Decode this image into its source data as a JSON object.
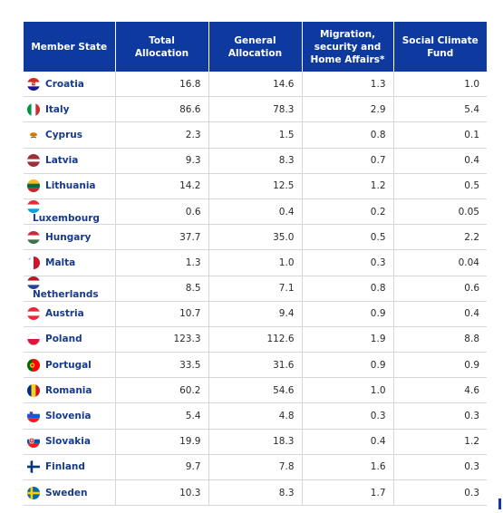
{
  "headers": [
    "Member State",
    "Total Allocation",
    "General Allocation",
    "Migration, security and Home Affairs*",
    "Social Climate Fund"
  ],
  "rows": [
    {
      "country": "Croatia",
      "flag": "croatia-flag-icon",
      "values": [
        "16.8",
        "14.6",
        "1.3",
        "1.0"
      ]
    },
    {
      "country": "Italy",
      "flag": "italy-flag-icon",
      "values": [
        "86.6",
        "78.3",
        "2.9",
        "5.4"
      ]
    },
    {
      "country": "Cyprus",
      "flag": "cyprus-flag-icon",
      "values": [
        "2.3",
        "1.5",
        "0.8",
        "0.1"
      ]
    },
    {
      "country": "Latvia",
      "flag": "latvia-flag-icon",
      "values": [
        "9.3",
        "8.3",
        "0.7",
        "0.4"
      ]
    },
    {
      "country": "Lithuania",
      "flag": "lithuania-flag-icon",
      "values": [
        "14.2",
        "12.5",
        "1.2",
        "0.5"
      ]
    },
    {
      "country": "Luxembourg",
      "flag": "luxembourg-flag-icon",
      "values": [
        "0.6",
        "0.4",
        "0.2",
        "0.05"
      ]
    },
    {
      "country": "Hungary",
      "flag": "hungary-flag-icon",
      "values": [
        "37.7",
        "35.0",
        "0.5",
        "2.2"
      ]
    },
    {
      "country": "Malta",
      "flag": "malta-flag-icon",
      "values": [
        "1.3",
        "1.0",
        "0.3",
        "0.04"
      ]
    },
    {
      "country": "Netherlands",
      "flag": "netherlands-flag-icon",
      "values": [
        "8.5",
        "7.1",
        "0.8",
        "0.6"
      ]
    },
    {
      "country": "Austria",
      "flag": "austria-flag-icon",
      "values": [
        "10.7",
        "9.4",
        "0.9",
        "0.4"
      ]
    },
    {
      "country": "Poland",
      "flag": "poland-flag-icon",
      "values": [
        "123.3",
        "112.6",
        "1.9",
        "8.8"
      ]
    },
    {
      "country": "Portugal",
      "flag": "portugal-flag-icon",
      "values": [
        "33.5",
        "31.6",
        "0.9",
        "0.9"
      ]
    },
    {
      "country": "Romania",
      "flag": "romania-flag-icon",
      "values": [
        "60.2",
        "54.6",
        "1.0",
        "4.6"
      ]
    },
    {
      "country": "Slovenia",
      "flag": "slovenia-flag-icon",
      "values": [
        "5.4",
        "4.8",
        "0.3",
        "0.3"
      ]
    },
    {
      "country": "Slovakia",
      "flag": "slovakia-flag-icon",
      "values": [
        "19.9",
        "18.3",
        "0.4",
        "1.2"
      ]
    },
    {
      "country": "Finland",
      "flag": "finland-flag-icon",
      "values": [
        "9.7",
        "7.8",
        "1.6",
        "0.3"
      ]
    },
    {
      "country": "Sweden",
      "flag": "sweden-flag-icon",
      "values": [
        "10.3",
        "8.3",
        "1.7",
        "0.3"
      ]
    }
  ],
  "colors": {
    "header_bg": "#0e3aa0",
    "header_text": "#ffffff",
    "country_text": "#163a8c",
    "grid": "#d7d7d7"
  }
}
